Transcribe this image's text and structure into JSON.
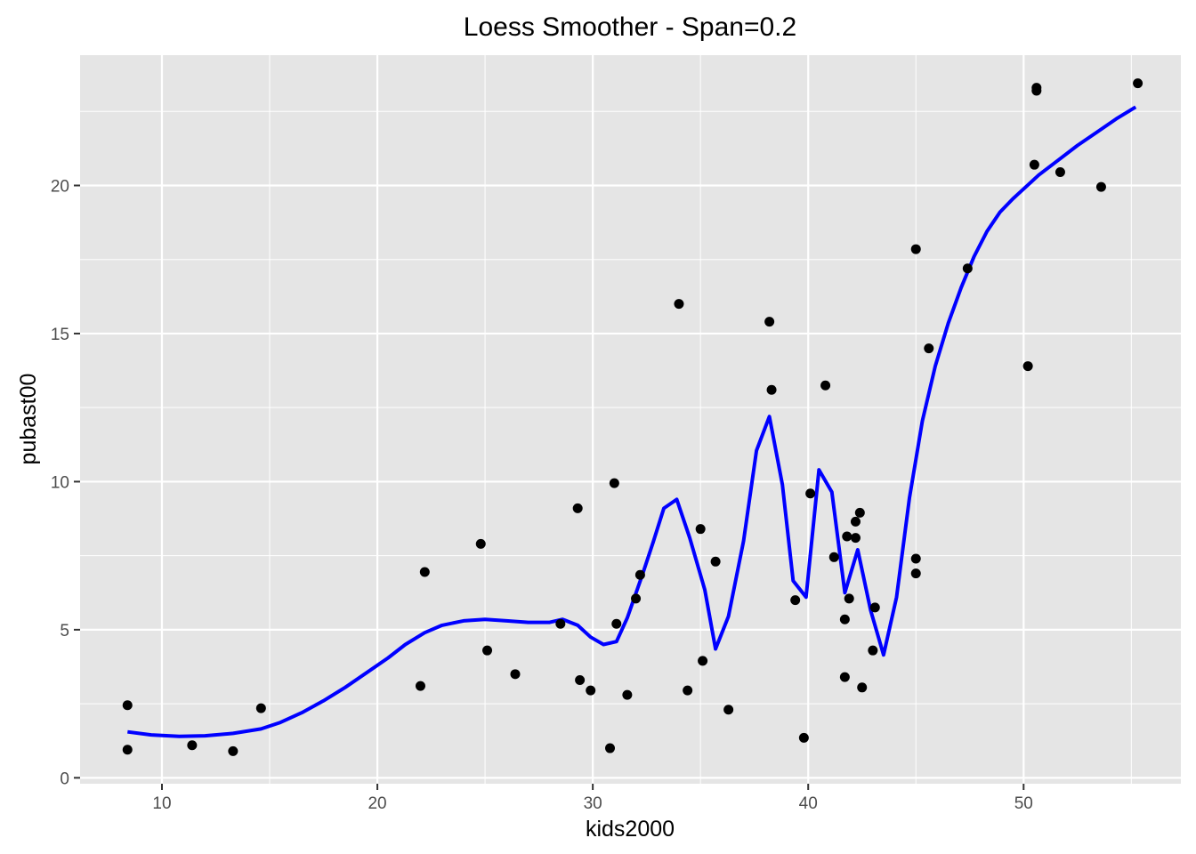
{
  "chart_data": {
    "type": "scatter",
    "title": "Loess Smoother - Span=0.2",
    "xlabel": "kids2000",
    "ylabel": "pubast00",
    "xlim": [
      6.2,
      57.3
    ],
    "ylim": [
      -0.2,
      24.4
    ],
    "xticks": [
      10,
      20,
      30,
      40,
      50
    ],
    "yticks": [
      0,
      5,
      10,
      15,
      20
    ],
    "x_tick_labels": [
      "10",
      "20",
      "30",
      "40",
      "50"
    ],
    "y_tick_labels": [
      "0",
      "5",
      "10",
      "15",
      "20"
    ],
    "grid": true,
    "legend": "none",
    "colors": {
      "panel": "#e5e5e5",
      "grid_major": "#ffffff",
      "point": "#000000",
      "smoother": "#0000ff",
      "tick": "#333333"
    },
    "series": [
      {
        "kind": "points",
        "points": [
          [
            8.4,
            2.45
          ],
          [
            8.4,
            0.95
          ],
          [
            11.4,
            1.1
          ],
          [
            13.3,
            0.9
          ],
          [
            14.6,
            2.35
          ],
          [
            22.0,
            3.1
          ],
          [
            22.2,
            6.95
          ],
          [
            24.8,
            7.9
          ],
          [
            25.1,
            4.3
          ],
          [
            26.4,
            3.5
          ],
          [
            28.5,
            5.2
          ],
          [
            29.3,
            9.1
          ],
          [
            29.4,
            3.3
          ],
          [
            29.9,
            2.95
          ],
          [
            30.8,
            1.0
          ],
          [
            31.0,
            9.95
          ],
          [
            31.1,
            5.2
          ],
          [
            31.6,
            2.8
          ],
          [
            32.0,
            6.05
          ],
          [
            32.2,
            6.85
          ],
          [
            34.0,
            16.0
          ],
          [
            34.4,
            2.95
          ],
          [
            35.0,
            8.4
          ],
          [
            35.1,
            3.95
          ],
          [
            35.7,
            7.3
          ],
          [
            36.3,
            2.3
          ],
          [
            38.2,
            15.4
          ],
          [
            38.3,
            13.1
          ],
          [
            39.4,
            6.0
          ],
          [
            39.8,
            1.35
          ],
          [
            40.1,
            9.6
          ],
          [
            40.8,
            13.25
          ],
          [
            41.2,
            7.45
          ],
          [
            41.7,
            3.4
          ],
          [
            41.7,
            5.35
          ],
          [
            41.8,
            8.15
          ],
          [
            41.9,
            6.05
          ],
          [
            42.2,
            8.65
          ],
          [
            42.2,
            8.1
          ],
          [
            42.4,
            8.95
          ],
          [
            42.5,
            3.05
          ],
          [
            43.0,
            4.3
          ],
          [
            43.1,
            5.75
          ],
          [
            45.0,
            17.85
          ],
          [
            45.0,
            6.9
          ],
          [
            45.0,
            7.4
          ],
          [
            45.6,
            14.5
          ],
          [
            47.4,
            17.2
          ],
          [
            50.2,
            13.9
          ],
          [
            50.5,
            20.7
          ],
          [
            50.6,
            23.3
          ],
          [
            50.6,
            23.2
          ],
          [
            51.7,
            20.45
          ],
          [
            53.6,
            19.95
          ],
          [
            55.3,
            23.45
          ]
        ]
      },
      {
        "kind": "loess",
        "span": 0.2,
        "points": [
          [
            8.4,
            1.55
          ],
          [
            9.5,
            1.45
          ],
          [
            10.8,
            1.4
          ],
          [
            12.0,
            1.42
          ],
          [
            13.3,
            1.5
          ],
          [
            14.6,
            1.65
          ],
          [
            15.5,
            1.87
          ],
          [
            16.5,
            2.2
          ],
          [
            17.5,
            2.6
          ],
          [
            18.5,
            3.05
          ],
          [
            19.5,
            3.55
          ],
          [
            20.5,
            4.05
          ],
          [
            21.3,
            4.5
          ],
          [
            22.2,
            4.9
          ],
          [
            23.0,
            5.15
          ],
          [
            24.0,
            5.3
          ],
          [
            25.0,
            5.35
          ],
          [
            26.0,
            5.3
          ],
          [
            27.0,
            5.25
          ],
          [
            28.0,
            5.25
          ],
          [
            28.6,
            5.35
          ],
          [
            29.3,
            5.15
          ],
          [
            29.9,
            4.75
          ],
          [
            30.5,
            4.5
          ],
          [
            31.1,
            4.6
          ],
          [
            31.6,
            5.4
          ],
          [
            32.3,
            6.85
          ],
          [
            32.8,
            7.95
          ],
          [
            33.3,
            9.1
          ],
          [
            33.9,
            9.4
          ],
          [
            34.5,
            8.1
          ],
          [
            35.2,
            6.35
          ],
          [
            35.7,
            4.35
          ],
          [
            36.3,
            5.45
          ],
          [
            37.0,
            8.0
          ],
          [
            37.6,
            11.05
          ],
          [
            38.2,
            12.2
          ],
          [
            38.8,
            9.9
          ],
          [
            39.3,
            6.65
          ],
          [
            39.9,
            6.1
          ],
          [
            40.5,
            10.4
          ],
          [
            41.1,
            9.65
          ],
          [
            41.7,
            6.25
          ],
          [
            42.3,
            7.7
          ],
          [
            42.9,
            5.65
          ],
          [
            43.5,
            4.15
          ],
          [
            44.1,
            6.1
          ],
          [
            44.7,
            9.45
          ],
          [
            45.3,
            12.05
          ],
          [
            45.9,
            13.9
          ],
          [
            46.5,
            15.35
          ],
          [
            47.1,
            16.55
          ],
          [
            47.7,
            17.6
          ],
          [
            48.3,
            18.45
          ],
          [
            48.9,
            19.1
          ],
          [
            49.5,
            19.55
          ],
          [
            50.1,
            19.95
          ],
          [
            50.7,
            20.35
          ],
          [
            51.6,
            20.85
          ],
          [
            52.5,
            21.35
          ],
          [
            53.4,
            21.8
          ],
          [
            54.3,
            22.25
          ],
          [
            55.2,
            22.65
          ]
        ]
      }
    ]
  }
}
